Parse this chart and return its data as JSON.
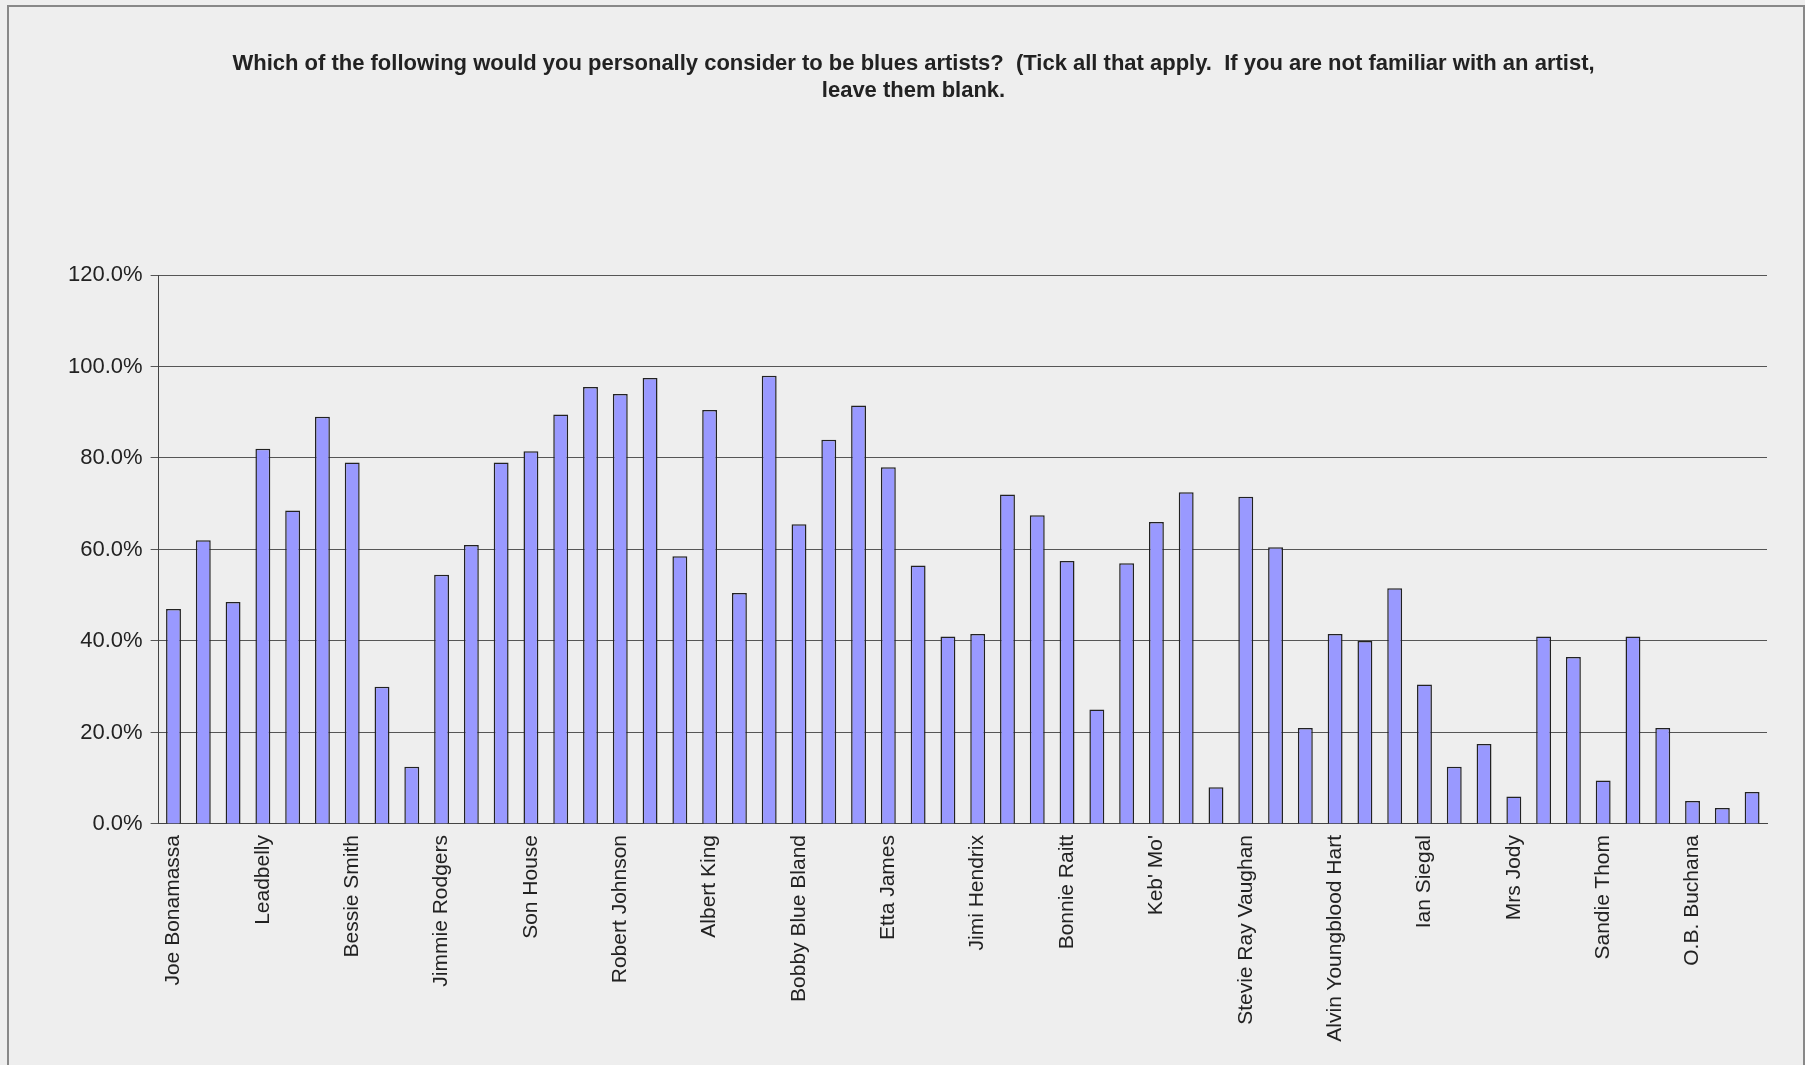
{
  "chart_data": {
    "type": "bar",
    "title": "Which of the following would you personally consider to be blues artists?  (Tick all that apply.  If you are not familiar with an artist, leave them blank.",
    "categories": [
      "Joe Bonamassa",
      null,
      null,
      "Leadbelly",
      null,
      null,
      "Bessie Smith",
      null,
      null,
      "Jimmie Rodgers",
      null,
      null,
      "Son House",
      null,
      null,
      "Robert Johnson",
      null,
      null,
      "Albert King",
      null,
      null,
      "Bobby Blue Bland",
      null,
      null,
      "Etta James",
      null,
      null,
      "Jimi Hendrix",
      null,
      null,
      "Bonnie Raitt",
      null,
      null,
      "Keb' Mo'",
      null,
      null,
      "Stevie Ray Vaughan",
      null,
      null,
      "Alvin Youngblood Hart",
      null,
      null,
      "Ian Siegal",
      null,
      null,
      "Mrs Jody",
      null,
      null,
      "Sandie Thom",
      null,
      null,
      "O.B. Buchana",
      null,
      null
    ],
    "values": [
      47,
      62,
      48.5,
      82,
      68.5,
      89,
      79,
      30,
      12.5,
      54.5,
      61,
      79,
      81.5,
      89.5,
      95.5,
      94,
      97.5,
      58.5,
      90.5,
      50.5,
      98,
      65.5,
      84,
      91.5,
      78,
      56.5,
      41,
      41.5,
      72,
      67.5,
      57.5,
      25,
      57,
      66,
      72.5,
      8,
      71.5,
      60.5,
      21,
      41.5,
      40,
      51.5,
      30.5,
      12.5,
      17.5,
      6,
      41,
      36.5,
      9.5,
      41,
      21,
      5,
      3.5,
      7
    ],
    "color": "#9999ff",
    "ylim": [
      0,
      120
    ],
    "yticks": [
      {
        "value": 0,
        "label": "0.0%"
      },
      {
        "value": 20,
        "label": "20.0%"
      },
      {
        "value": 40,
        "label": "40.0%"
      },
      {
        "value": 60,
        "label": "60.0%"
      },
      {
        "value": 80,
        "label": "80.0%"
      },
      {
        "value": 100,
        "label": "100.0%"
      },
      {
        "value": 120,
        "label": "120.0%"
      }
    ],
    "grid": "y",
    "legend": false
  }
}
